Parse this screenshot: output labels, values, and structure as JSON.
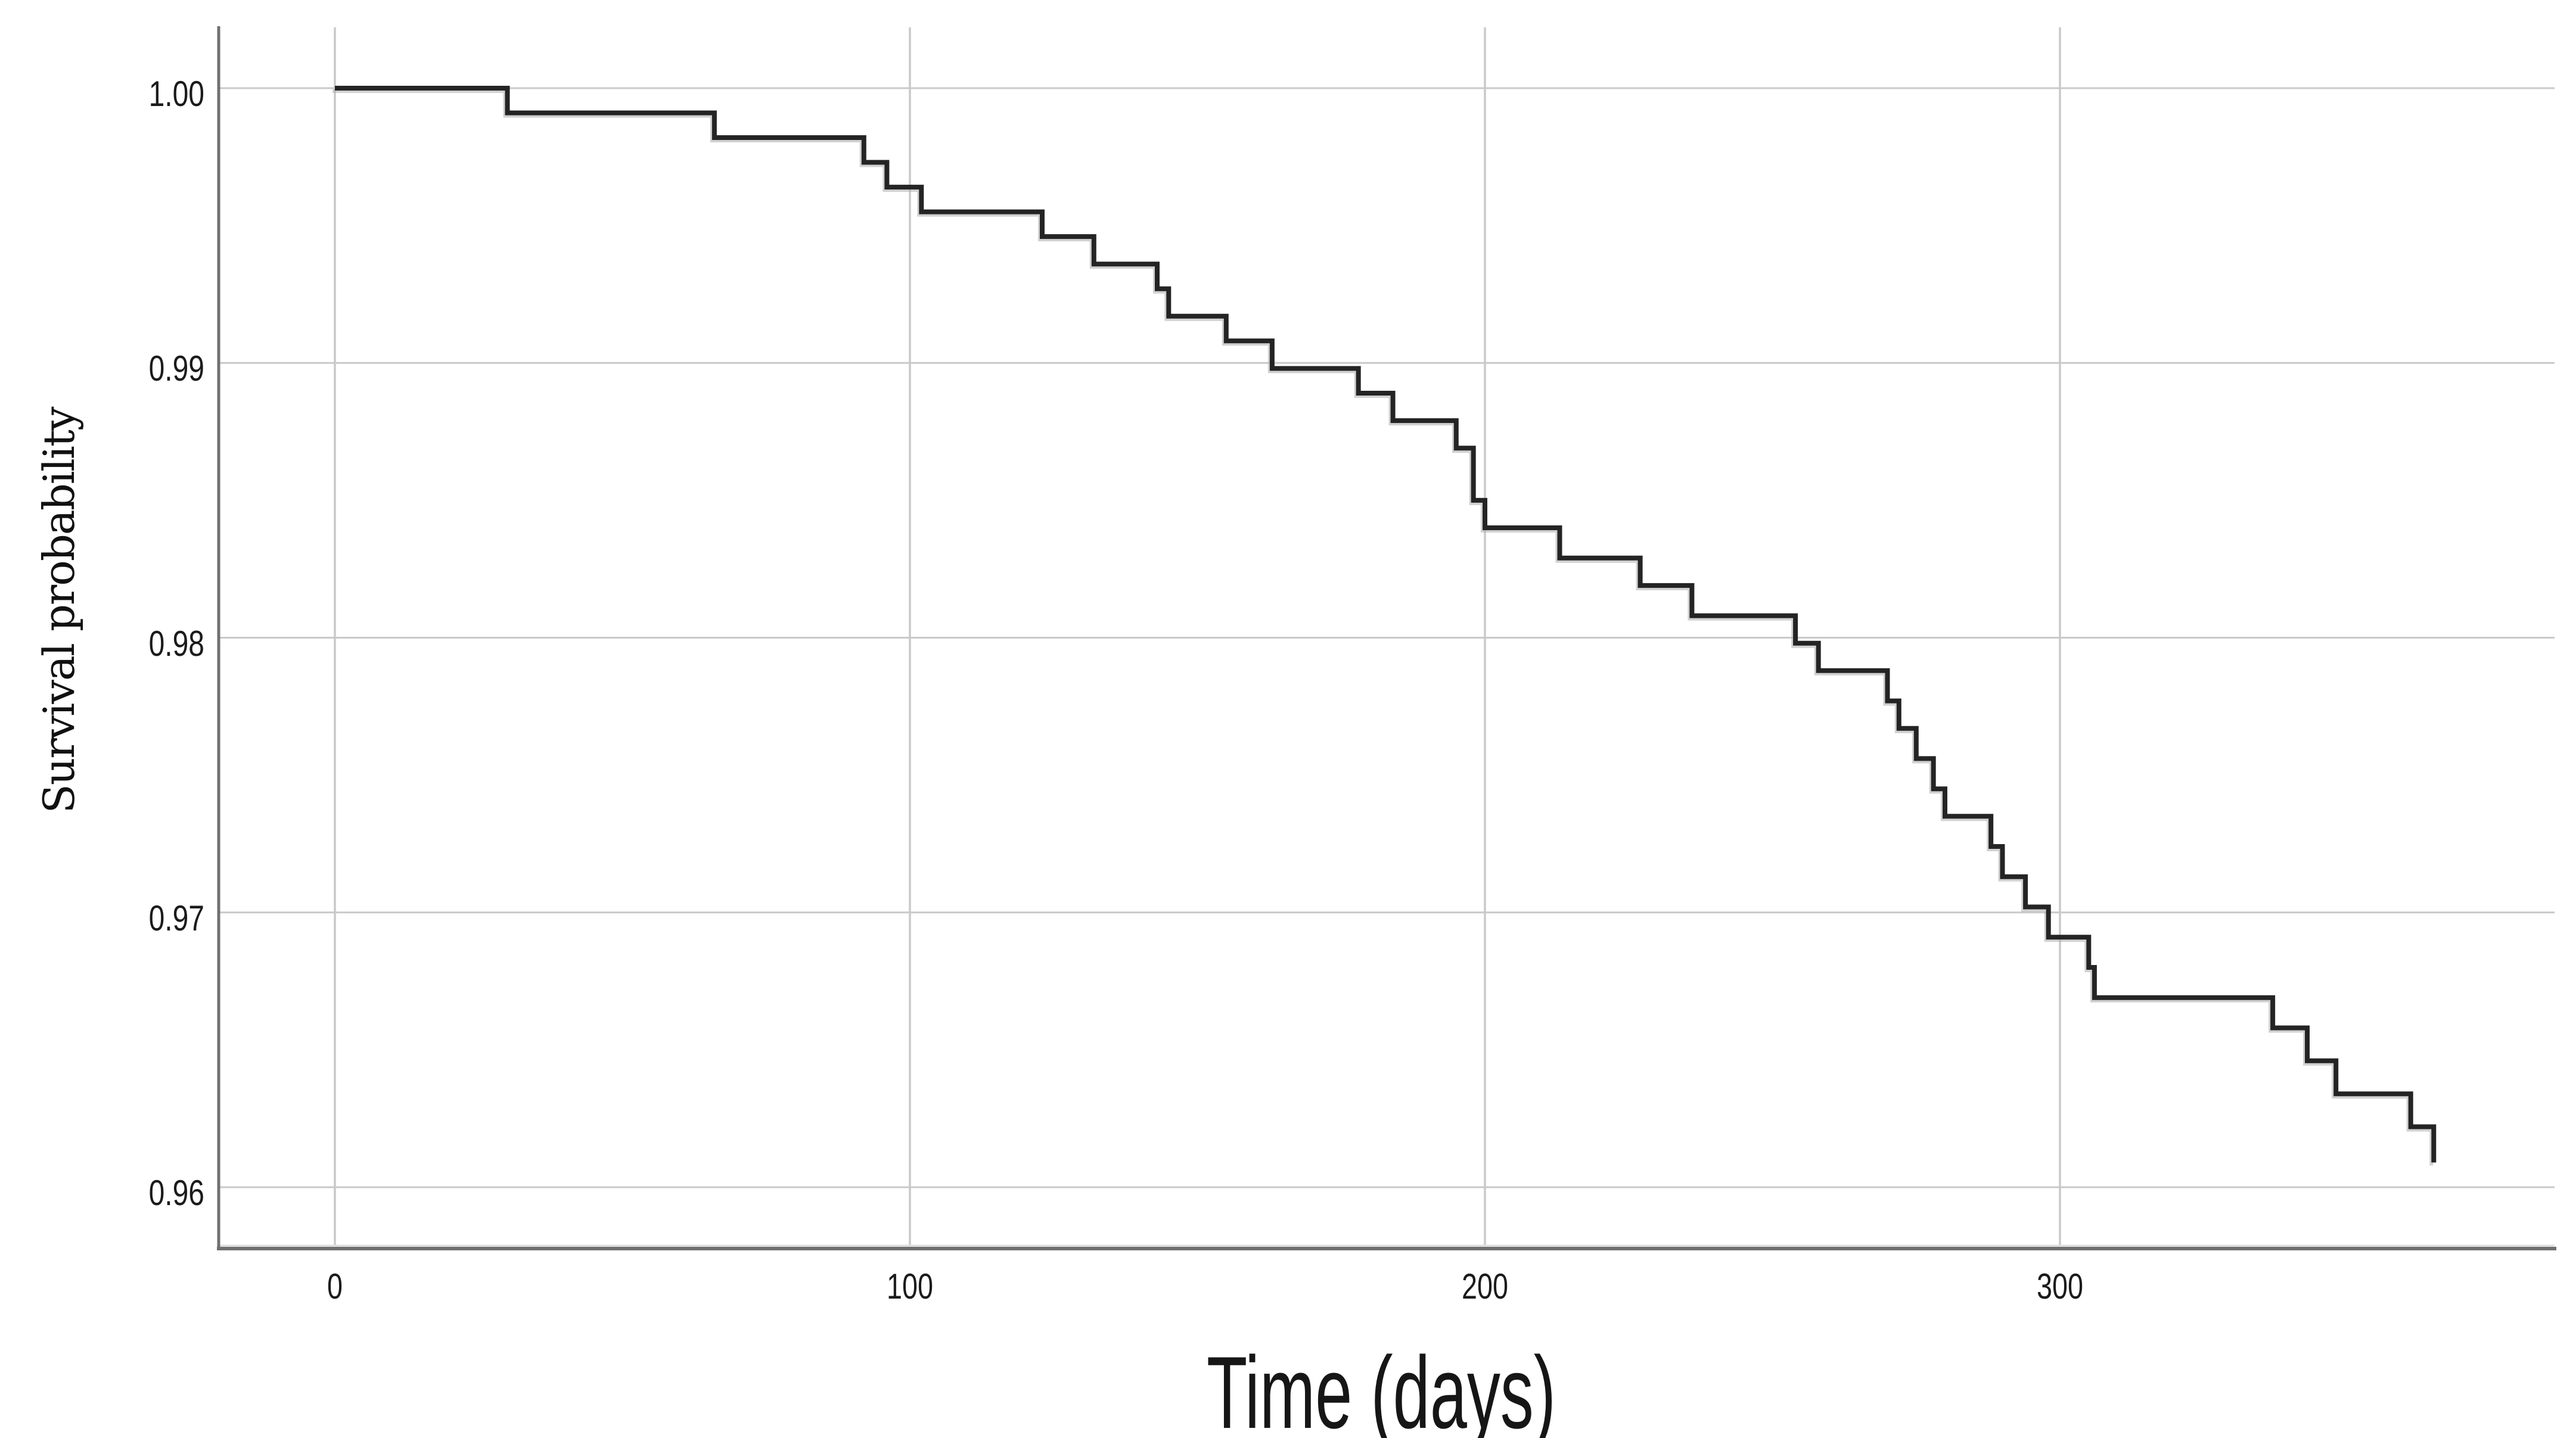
{
  "figure": {
    "x_axis": {
      "label": "Time (days)",
      "tick_labels": [
        "0",
        "100",
        "200",
        "300"
      ],
      "tick_values": [
        0,
        100,
        200,
        300
      ]
    },
    "y_axis": {
      "label": "Survival probability",
      "tick_labels": [
        "1.00",
        "0.99",
        "0.98",
        "0.97",
        "0.96"
      ],
      "tick_values": [
        1.0,
        0.99,
        0.98,
        0.97,
        0.96
      ]
    },
    "colors": {
      "background": "#ffffff",
      "curve": "#242424",
      "curve_echo": "#ababab",
      "gridline": "#c9c9c9",
      "frame_light": "#dcdcdc",
      "axis_line": "#707070",
      "text": "#1b1b1b"
    }
  },
  "chart_data": {
    "type": "line",
    "subtype": "kaplan-meier-step-function",
    "title": "",
    "xlabel": "Time (days)",
    "ylabel": "Survival probability",
    "xlim": [
      -20,
      386
    ],
    "ylim": [
      0.9578,
      1.0022
    ],
    "x_ticks": [
      0,
      100,
      200,
      300
    ],
    "y_ticks": [
      1.0,
      0.99,
      0.98,
      0.97,
      0.96
    ],
    "grid": true,
    "legend": false,
    "series": [
      {
        "name": "Survival probability",
        "start_point": {
          "t": 0,
          "s": 1.0
        },
        "end_of_followup_days": 365,
        "final_survival": 0.9609,
        "steps": [
          [
            30,
            0.9991
          ],
          [
            66,
            0.9982
          ],
          [
            92,
            0.9973
          ],
          [
            96,
            0.9964
          ],
          [
            102,
            0.9955
          ],
          [
            123,
            0.9946
          ],
          [
            132,
            0.9936
          ],
          [
            143,
            0.9927
          ],
          [
            145,
            0.9917
          ],
          [
            155,
            0.9908
          ],
          [
            163,
            0.9898
          ],
          [
            178,
            0.9889
          ],
          [
            184,
            0.9879
          ],
          [
            195,
            0.9869
          ],
          [
            198,
            0.985
          ],
          [
            200,
            0.984
          ],
          [
            213,
            0.9829
          ],
          [
            227,
            0.9819
          ],
          [
            236,
            0.9808
          ],
          [
            254,
            0.9798
          ],
          [
            258,
            0.9788
          ],
          [
            270,
            0.9777
          ],
          [
            272,
            0.9767
          ],
          [
            275,
            0.9756
          ],
          [
            278,
            0.9745
          ],
          [
            280,
            0.9735
          ],
          [
            288,
            0.9724
          ],
          [
            290,
            0.9713
          ],
          [
            294,
            0.9702
          ],
          [
            298,
            0.9691
          ],
          [
            305,
            0.968
          ],
          [
            306,
            0.9669
          ],
          [
            337,
            0.9658
          ],
          [
            343,
            0.9646
          ],
          [
            348,
            0.9634
          ],
          [
            361,
            0.9622
          ],
          [
            365,
            0.9609
          ]
        ]
      }
    ]
  }
}
